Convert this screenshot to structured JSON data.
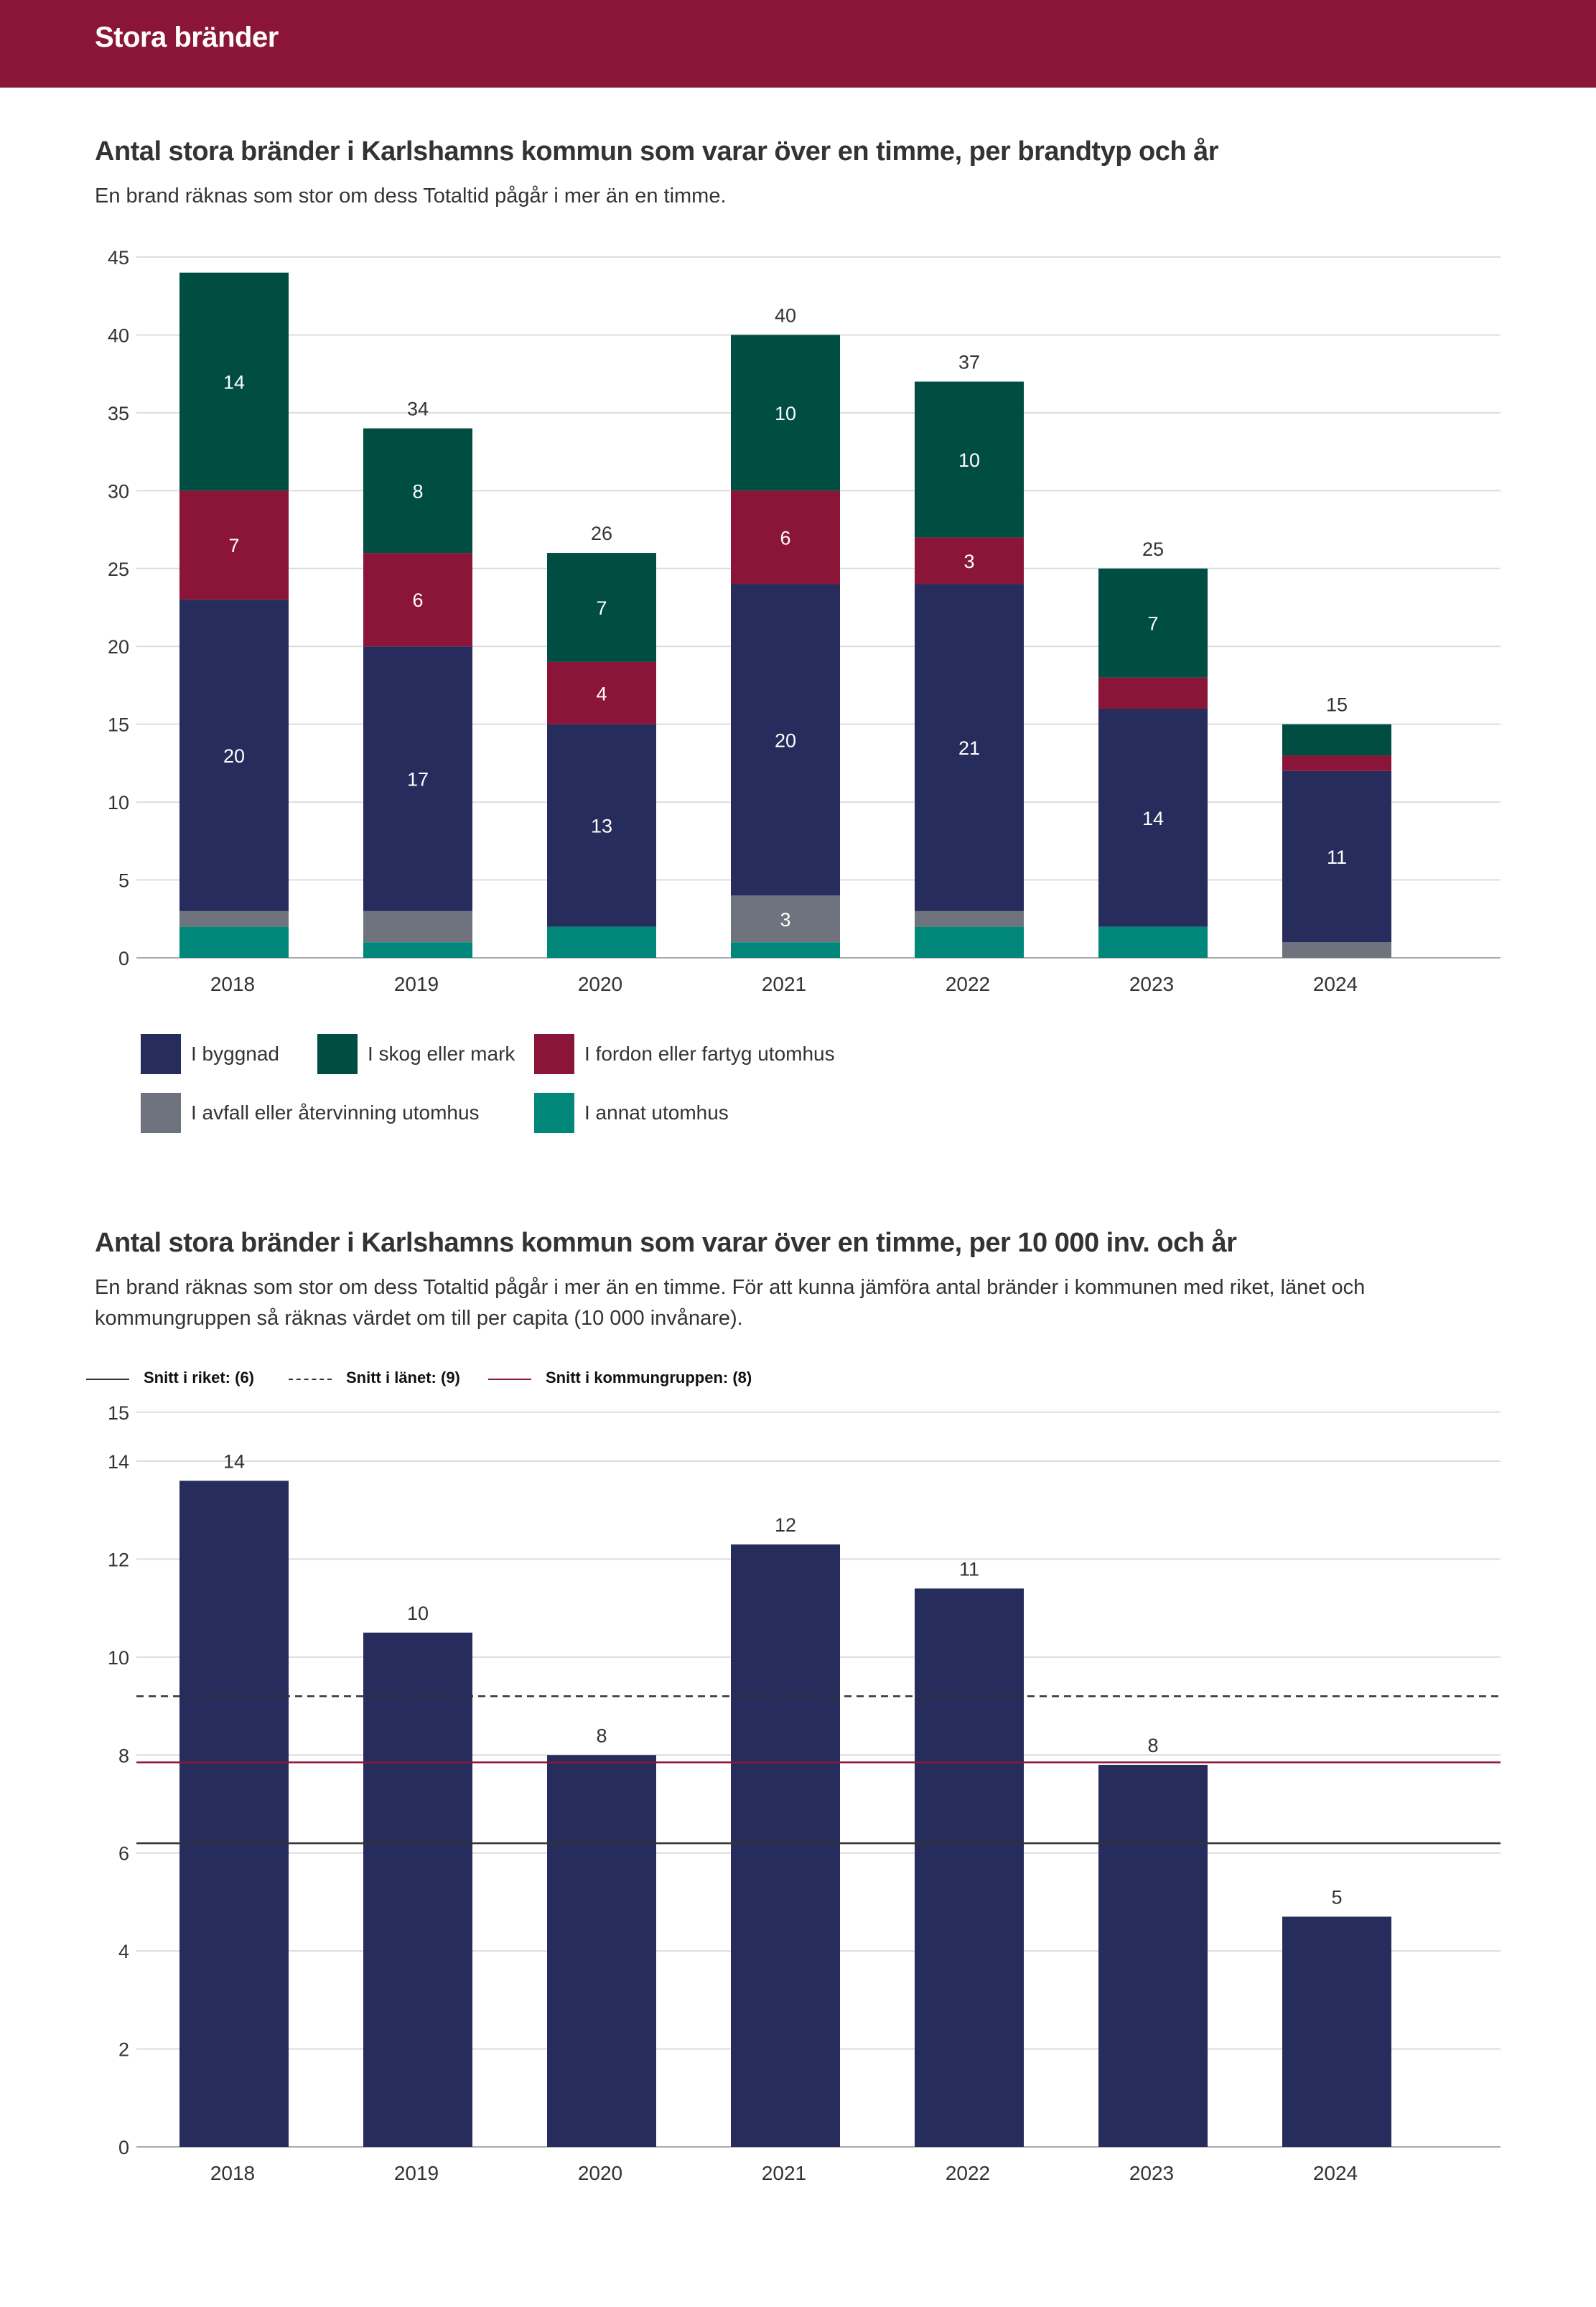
{
  "header": {
    "title": "Stora bränder"
  },
  "section1": {
    "title": "Antal stora bränder i Karlshamns kommun som varar över en timme, per brandtyp och år",
    "subtitle": "En brand räknas som stor om dess Totaltid pågår i mer än en timme."
  },
  "section2": {
    "title": "Antal stora bränder i Karlshamns kommun som varar över en timme, per 10 000 inv. och år",
    "subtitle_line1": "En brand räknas som stor om dess Totaltid pågår i mer än en timme. För att kunna jämföra antal bränder i kommunen med riket, länet och",
    "subtitle_line2": "kommungruppen så räknas värdet om till per capita (10 000 invånare)."
  },
  "colors": {
    "byggnad": "#262c5c",
    "skog": "#004d42",
    "fordon": "#8b1538",
    "avfall": "#6e737d",
    "annat": "#00877a",
    "grid": "#dddddd",
    "axis": "#aaaaaa"
  },
  "chart_data": [
    {
      "type": "bar",
      "stacked": true,
      "title": "Antal stora bränder i Karlshamns kommun som varar över en timme, per brandtyp och år",
      "categories": [
        "2018",
        "2019",
        "2020",
        "2021",
        "2022",
        "2023",
        "2024"
      ],
      "ylim": [
        0,
        45
      ],
      "yticks": [
        0,
        5,
        10,
        15,
        20,
        25,
        30,
        35,
        40,
        45
      ],
      "totals": [
        null,
        "34",
        "26",
        "40",
        "37",
        "25",
        "15"
      ],
      "series": [
        {
          "key": "annat",
          "name": "I annat utomhus",
          "values": [
            2,
            1,
            2,
            1,
            2,
            2,
            0
          ],
          "labels": [
            "",
            "",
            "",
            "",
            "",
            "",
            ""
          ]
        },
        {
          "key": "avfall",
          "name": "I avfall eller återvinning utomhus",
          "values": [
            1,
            2,
            0,
            3,
            1,
            0,
            1
          ],
          "labels": [
            "",
            "",
            "",
            "3",
            "",
            "",
            ""
          ]
        },
        {
          "key": "byggnad",
          "name": "I byggnad",
          "values": [
            20,
            17,
            13,
            20,
            21,
            14,
            11
          ],
          "labels": [
            "20",
            "17",
            "13",
            "20",
            "21",
            "14",
            "11"
          ]
        },
        {
          "key": "fordon",
          "name": "I fordon eller fartyg utomhus",
          "values": [
            7,
            6,
            4,
            6,
            3,
            2,
            1
          ],
          "labels": [
            "7",
            "6",
            "4",
            "6",
            "3",
            "",
            ""
          ]
        },
        {
          "key": "skog",
          "name": "I skog eller mark",
          "values": [
            14,
            8,
            7,
            10,
            10,
            7,
            2
          ],
          "labels": [
            "14",
            "8",
            "7",
            "10",
            "10",
            "7",
            ""
          ]
        }
      ],
      "legend": [
        {
          "key": "byggnad",
          "label": "I byggnad"
        },
        {
          "key": "skog",
          "label": "I skog eller mark"
        },
        {
          "key": "fordon",
          "label": "I fordon eller fartyg utomhus"
        },
        {
          "key": "avfall",
          "label": "I avfall eller återvinning utomhus"
        },
        {
          "key": "annat",
          "label": "I annat utomhus"
        }
      ]
    },
    {
      "type": "bar",
      "title": "Antal stora bränder i Karlshamns kommun som varar över en timme, per 10 000 inv. och år",
      "categories": [
        "2018",
        "2019",
        "2020",
        "2021",
        "2022",
        "2023",
        "2024"
      ],
      "values": [
        13.6,
        10.5,
        8.0,
        12.3,
        11.4,
        7.8,
        4.7
      ],
      "labels": [
        "14",
        "10",
        "8",
        "12",
        "11",
        "8",
        "5"
      ],
      "ylim": [
        0,
        15
      ],
      "yticks": [
        0,
        2,
        4,
        6,
        8,
        10,
        12,
        14,
        15
      ],
      "reference_lines": [
        {
          "label": "Snitt i riket: (6)",
          "value": 6.2,
          "color": "#333333",
          "dash": ""
        },
        {
          "label": "Snitt i länet: (9)",
          "value": 9.2,
          "color": "#333333",
          "dash": "10,7"
        },
        {
          "label": "Snitt i kommungruppen: (8)",
          "value": 7.85,
          "color": "#8b1538",
          "dash": ""
        }
      ]
    }
  ]
}
